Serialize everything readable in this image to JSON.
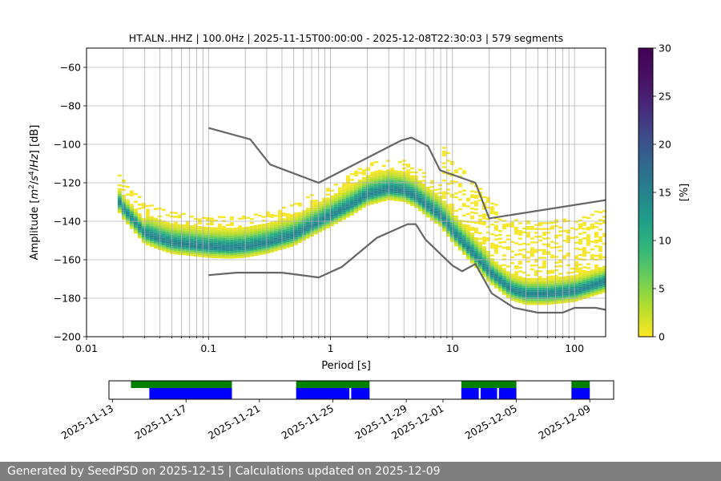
{
  "chart_data": {
    "type": "heatmap",
    "title": "HT.ALN..HHZ | 100.0Hz | 2025-11-15T00:00:00 - 2025-12-08T22:30:03 | 579 segments",
    "xlabel": "Period [s]",
    "ylabel_parts": [
      "Amplitude [",
      "m",
      "2",
      "/",
      "s",
      "4",
      "/",
      "Hz",
      "] [dB]"
    ],
    "xscale": "log",
    "xlim": [
      0.01,
      180
    ],
    "ylim": [
      -200,
      -50
    ],
    "xticks": [
      0.01,
      0.1,
      1,
      10,
      100
    ],
    "xtick_labels": [
      "0.01",
      "0.1",
      "1",
      "10",
      "100"
    ],
    "yticks": [
      -200,
      -180,
      -160,
      -140,
      -120,
      -100,
      -80,
      -60
    ],
    "ytick_labels": [
      "−200",
      "−180",
      "−160",
      "−140",
      "−120",
      "−100",
      "−80",
      "−60"
    ],
    "grid": true,
    "colorbar": {
      "label": "[%]",
      "range": [
        0,
        30
      ],
      "ticks": [
        0,
        5,
        10,
        15,
        20,
        25,
        30
      ],
      "tick_labels": [
        "0",
        "5",
        "10",
        "15",
        "20",
        "25",
        "30"
      ],
      "colormap": "viridis_r"
    },
    "noise_models": [
      {
        "name": "upper",
        "points": [
          [
            0.1,
            -91.5
          ],
          [
            0.22,
            -97.4
          ],
          [
            0.32,
            -110.5
          ],
          [
            0.8,
            -120
          ],
          [
            3.8,
            -98
          ],
          [
            4.6,
            -96.5
          ],
          [
            6.3,
            -101
          ],
          [
            7.9,
            -113.5
          ],
          [
            15.4,
            -120
          ],
          [
            20,
            -138.5
          ],
          [
            180,
            -129
          ]
        ]
      },
      {
        "name": "lower",
        "points": [
          [
            0.1,
            -168
          ],
          [
            0.17,
            -166.7
          ],
          [
            0.4,
            -166.7
          ],
          [
            0.8,
            -169.2
          ],
          [
            1.24,
            -163.7
          ],
          [
            2.4,
            -148.6
          ],
          [
            4.3,
            -141.5
          ],
          [
            5.0,
            -141.5
          ],
          [
            6.0,
            -149.5
          ],
          [
            10.0,
            -163
          ],
          [
            12.0,
            -166
          ],
          [
            15.4,
            -162.2
          ],
          [
            21.0,
            -177.5
          ],
          [
            32.0,
            -185
          ],
          [
            50.0,
            -187.5
          ],
          [
            80.0,
            -187.5
          ],
          [
            100,
            -185
          ],
          [
            150,
            -185
          ],
          [
            180,
            -186
          ]
        ]
      }
    ],
    "density_mode": {
      "period": [
        0.018,
        0.02,
        0.025,
        0.03,
        0.04,
        0.05,
        0.07,
        0.1,
        0.15,
        0.2,
        0.3,
        0.5,
        0.7,
        1.0,
        1.5,
        2.0,
        3.0,
        4.0,
        5.0,
        6.0,
        8.0,
        10,
        15,
        20,
        30,
        40,
        60,
        100,
        180
      ],
      "amplitude_db": [
        -128,
        -133,
        -140,
        -146,
        -149,
        -151,
        -152,
        -153,
        -153.5,
        -153,
        -151,
        -147,
        -142,
        -137,
        -131,
        -126,
        -123,
        -124,
        -127,
        -131,
        -137,
        -145,
        -157,
        -166,
        -175,
        -177.5,
        -177.5,
        -176,
        -171
      ]
    },
    "availability": {
      "date_ticks": [
        "2025-11-13",
        "2025-11-17",
        "2025-11-21",
        "2025-11-25",
        "2025-11-29",
        "2025-12-01",
        "2025-12-05",
        "2025-12-09"
      ],
      "tick_day_offsets": [
        0,
        4,
        8,
        12,
        16,
        18,
        22,
        26
      ],
      "range_days": [
        -0.2,
        27.3
      ],
      "green_spans": [
        [
          1.0,
          6.5
        ],
        [
          10.0,
          14.0
        ],
        [
          19.0,
          22.0
        ],
        [
          25.0,
          26.0
        ]
      ],
      "blue_spans": [
        [
          2.0,
          6.5
        ],
        [
          10.0,
          12.9
        ],
        [
          13.0,
          14.0
        ],
        [
          19.0,
          19.95
        ],
        [
          20.05,
          20.95
        ],
        [
          21.05,
          22.0
        ],
        [
          25.0,
          26.0
        ]
      ],
      "green_color": "#008000",
      "blue_color": "#0000ff"
    }
  },
  "footer": {
    "text": "Generated by SeedPSD on 2025-12-15 | Calculations updated on 2025-12-09"
  }
}
